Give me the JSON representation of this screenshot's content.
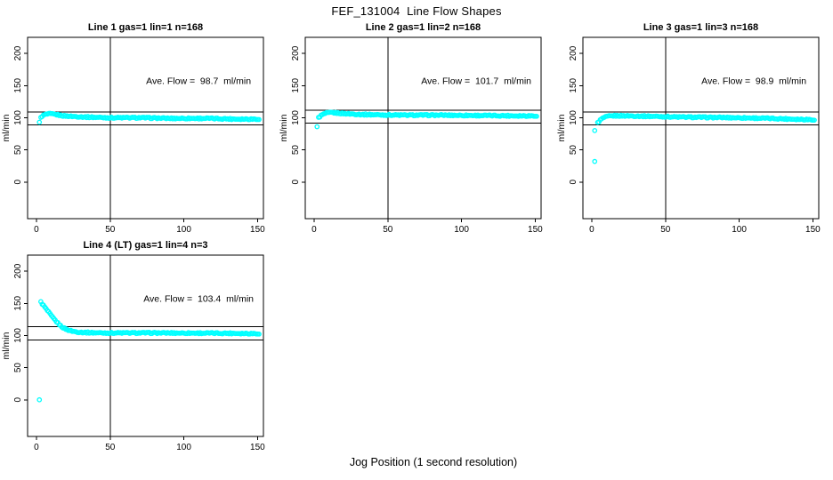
{
  "header": {
    "title": "FEF_131004  Line Flow Shapes"
  },
  "footer": {
    "xlabel": "Jog Position (1 second resolution)"
  },
  "colors": {
    "points": "#00ffff",
    "axis": "#000000",
    "ref_line": "#000000",
    "text": "#000000",
    "background": "#ffffff"
  },
  "chart_data": [
    {
      "type": "scatter",
      "title": "Line 1 gas=1 lin=1 n=168",
      "ylabel": "ml/min",
      "annotation": "Ave. Flow =  98.7  ml/min",
      "ave_flow_ml_min": 98.7,
      "n": 168,
      "x_ticks": [
        0,
        50,
        100,
        150
      ],
      "y_ticks": [
        0,
        50,
        100,
        150,
        200
      ],
      "xlim": [
        -6,
        154
      ],
      "ylim": [
        -57,
        225
      ],
      "ref_lines_h": [
        108.6,
        88.8
      ],
      "ref_line_v": 50,
      "annotation_xy": [
        110,
        157
      ],
      "outliers": [
        [
          2,
          93
        ]
      ],
      "profile": [
        [
          3,
          100
        ],
        [
          4,
          103
        ],
        [
          6,
          105
        ],
        [
          9,
          106
        ],
        [
          13,
          105
        ],
        [
          18,
          103
        ],
        [
          25,
          102
        ],
        [
          35,
          101
        ],
        [
          50,
          100
        ],
        [
          70,
          100
        ],
        [
          90,
          99
        ],
        [
          115,
          99
        ],
        [
          135,
          98
        ],
        [
          151,
          98
        ]
      ]
    },
    {
      "type": "scatter",
      "title": "Line 2 gas=1 lin=2 n=168",
      "ylabel": "ml/min",
      "annotation": "Ave. Flow =  101.7  ml/min",
      "ave_flow_ml_min": 101.7,
      "n": 168,
      "x_ticks": [
        0,
        50,
        100,
        150
      ],
      "y_ticks": [
        0,
        50,
        100,
        150,
        200
      ],
      "xlim": [
        -6,
        154
      ],
      "ylim": [
        -57,
        225
      ],
      "ref_lines_h": [
        111.9,
        91.5
      ],
      "ref_line_v": 50,
      "annotation_xy": [
        110,
        157
      ],
      "outliers": [
        [
          2,
          86
        ]
      ],
      "profile": [
        [
          3,
          100
        ],
        [
          5,
          104
        ],
        [
          8,
          107
        ],
        [
          12,
          108
        ],
        [
          17,
          107
        ],
        [
          24,
          106
        ],
        [
          33,
          105
        ],
        [
          45,
          104.5
        ],
        [
          60,
          104
        ],
        [
          85,
          104
        ],
        [
          110,
          103.5
        ],
        [
          135,
          103
        ],
        [
          151,
          103
        ]
      ]
    },
    {
      "type": "scatter",
      "title": "Line 3 gas=1 lin=3 n=168",
      "ylabel": "ml/min",
      "annotation": "Ave. Flow =  98.9  ml/min",
      "ave_flow_ml_min": 98.9,
      "n": 168,
      "x_ticks": [
        0,
        50,
        100,
        150
      ],
      "y_ticks": [
        0,
        50,
        100,
        150,
        200
      ],
      "xlim": [
        -6,
        154
      ],
      "ylim": [
        -57,
        225
      ],
      "ref_lines_h": [
        108.8,
        89.0
      ],
      "ref_line_v": 50,
      "annotation_xy": [
        110,
        157
      ],
      "outliers": [
        [
          2,
          80
        ],
        [
          2,
          32
        ]
      ],
      "profile": [
        [
          4,
          92
        ],
        [
          6,
          97
        ],
        [
          8,
          100
        ],
        [
          11,
          102
        ],
        [
          15,
          103
        ],
        [
          22,
          103
        ],
        [
          32,
          102.5
        ],
        [
          45,
          102
        ],
        [
          60,
          101
        ],
        [
          80,
          100.5
        ],
        [
          100,
          100
        ],
        [
          120,
          99
        ],
        [
          135,
          98
        ],
        [
          151,
          97
        ]
      ]
    },
    {
      "type": "scatter",
      "title": "Line 4 (LT) gas=1 lin=4 n=3",
      "ylabel": "ml/min",
      "annotation": "Ave. Flow =  103.4  ml/min",
      "ave_flow_ml_min": 103.4,
      "n": 3,
      "x_ticks": [
        0,
        50,
        100,
        150
      ],
      "y_ticks": [
        0,
        50,
        100,
        150,
        200
      ],
      "xlim": [
        -6,
        154
      ],
      "ylim": [
        -57,
        225
      ],
      "ref_lines_h": [
        113.7,
        93.1
      ],
      "ref_line_v": 50,
      "annotation_xy": [
        110,
        157
      ],
      "outliers": [
        [
          2,
          0
        ]
      ],
      "profile": [
        [
          3,
          152
        ],
        [
          4,
          149
        ],
        [
          5,
          146
        ],
        [
          7,
          140
        ],
        [
          9,
          134
        ],
        [
          11,
          128
        ],
        [
          13,
          123
        ],
        [
          15,
          118
        ],
        [
          17,
          114
        ],
        [
          19,
          111
        ],
        [
          21,
          109
        ],
        [
          23,
          107.5
        ],
        [
          26,
          106
        ],
        [
          30,
          105
        ],
        [
          36,
          104.5
        ],
        [
          45,
          104
        ],
        [
          60,
          104
        ],
        [
          80,
          104
        ],
        [
          100,
          103.8
        ],
        [
          120,
          103.6
        ],
        [
          135,
          103.4
        ],
        [
          151,
          103
        ]
      ]
    }
  ]
}
